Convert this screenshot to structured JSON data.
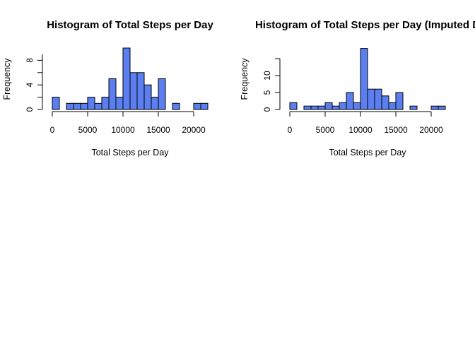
{
  "chart_data": [
    {
      "type": "bar",
      "title": "Histogram of Total Steps per Day",
      "xlabel": "Total Steps per Day",
      "ylabel": "Frequency",
      "xlim": [
        0,
        22000
      ],
      "ylim": [
        0,
        10
      ],
      "x_ticks": [
        "0",
        "5000",
        "10000",
        "15000",
        "20000"
      ],
      "y_ticks": [
        "0",
        "4",
        "8"
      ],
      "bin_width": 1000,
      "bin_starts": [
        0,
        1000,
        2000,
        3000,
        4000,
        5000,
        6000,
        7000,
        8000,
        9000,
        10000,
        11000,
        12000,
        13000,
        14000,
        15000,
        16000,
        17000,
        18000,
        19000,
        20000,
        21000
      ],
      "values": [
        2,
        0,
        1,
        1,
        1,
        2,
        1,
        2,
        5,
        2,
        10,
        6,
        6,
        4,
        2,
        5,
        0,
        1,
        0,
        0,
        1,
        1
      ],
      "bar_color": "#5b7ff0"
    },
    {
      "type": "bar",
      "title": "Histogram of Total Steps per Day (Imputed D",
      "xlabel": "Total Steps per Day",
      "ylabel": "Frequency",
      "xlim": [
        0,
        22000
      ],
      "ylim": [
        0,
        18
      ],
      "x_ticks": [
        "0",
        "5000",
        "10000",
        "15000",
        "20000"
      ],
      "y_ticks": [
        "0",
        "5",
        "10"
      ],
      "bin_width": 1000,
      "bin_starts": [
        0,
        1000,
        2000,
        3000,
        4000,
        5000,
        6000,
        7000,
        8000,
        9000,
        10000,
        11000,
        12000,
        13000,
        14000,
        15000,
        16000,
        17000,
        18000,
        19000,
        20000,
        21000
      ],
      "values": [
        2,
        0,
        1,
        1,
        1,
        2,
        1,
        2,
        5,
        2,
        18,
        6,
        6,
        4,
        2,
        5,
        0,
        1,
        0,
        0,
        1,
        1
      ],
      "bar_color": "#5b7ff0"
    }
  ]
}
